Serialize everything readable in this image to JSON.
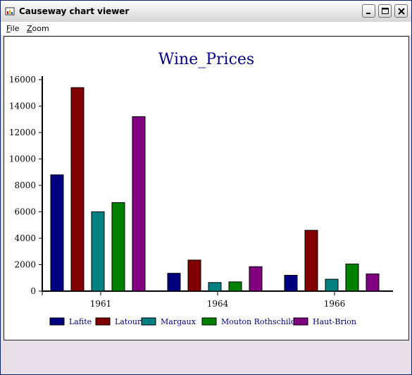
{
  "window": {
    "title": "Causeway chart viewer"
  },
  "menu": {
    "file_label": "File",
    "zoom_label": "Zoom"
  },
  "colors": {
    "Lafite": "#000080",
    "Latour": "#800000",
    "Margaux": "#008080",
    "Mouton Rothschild": "#008000",
    "Haut-Brion": "#800080",
    "title": "#000080",
    "legend_text": "#000080"
  },
  "chart_data": {
    "type": "bar",
    "title": "Wine_Prices",
    "categories": [
      "1961",
      "1964",
      "1966"
    ],
    "series": [
      {
        "name": "Lafite",
        "values": [
          8800,
          1350,
          1200
        ]
      },
      {
        "name": "Latour",
        "values": [
          15400,
          2350,
          4600
        ]
      },
      {
        "name": "Margaux",
        "values": [
          6000,
          650,
          900
        ]
      },
      {
        "name": "Mouton Rothschild",
        "values": [
          6700,
          700,
          2050
        ]
      },
      {
        "name": "Haut-Brion",
        "values": [
          13200,
          1850,
          1300
        ]
      }
    ],
    "ylim": [
      0,
      16000
    ],
    "yticks": [
      0,
      2000,
      4000,
      6000,
      8000,
      10000,
      12000,
      14000,
      16000
    ],
    "xlabel": "",
    "ylabel": "",
    "legend": "bottom",
    "grid": false
  }
}
